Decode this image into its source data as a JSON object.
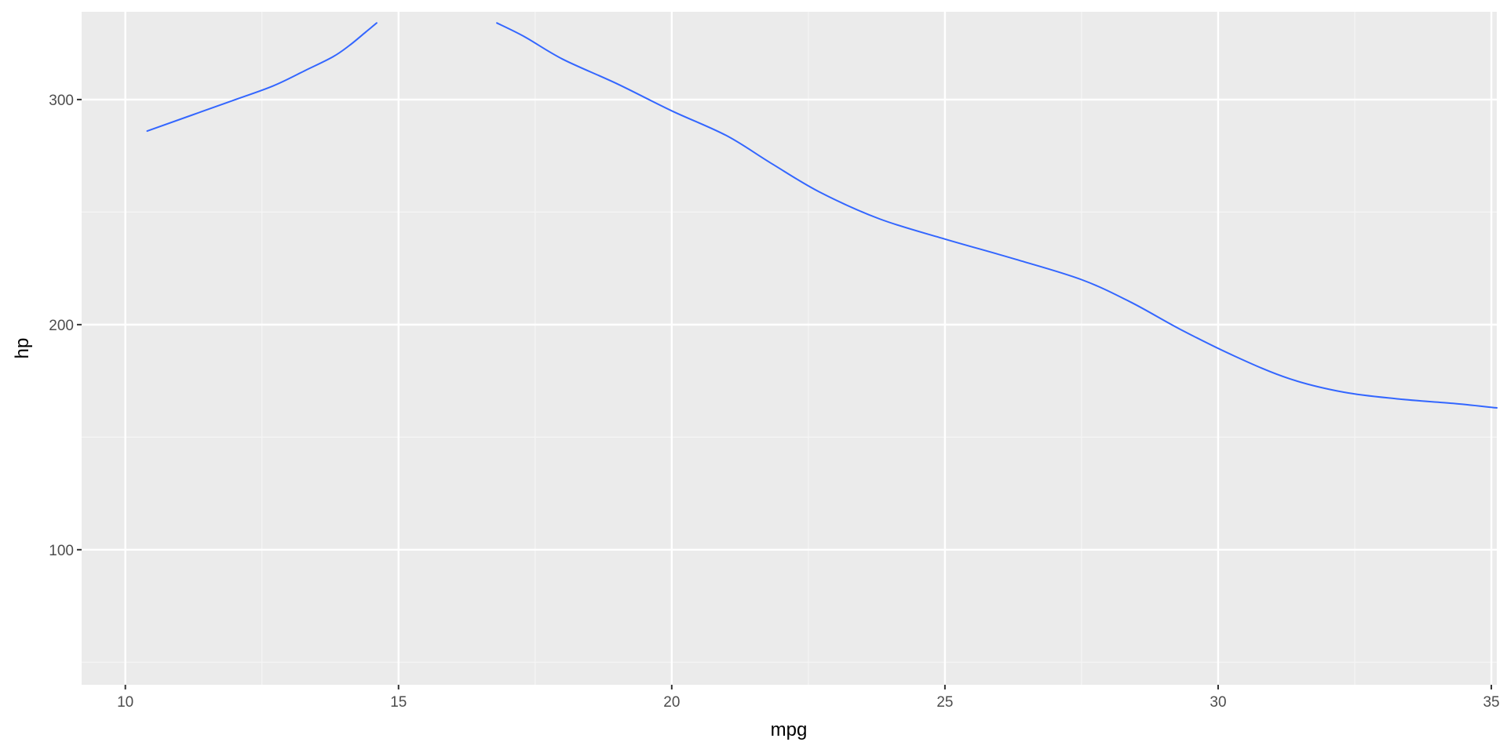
{
  "chart_data": {
    "type": "line",
    "subtype": "density-contour",
    "title": "",
    "xlabel": "mpg",
    "ylabel": "hp",
    "xlim": [
      9.2,
      35.1
    ],
    "ylim": [
      40,
      339
    ],
    "x_ticks": [
      10,
      15,
      20,
      25,
      30,
      35
    ],
    "y_ticks": [
      100,
      200,
      300
    ],
    "grid": true,
    "legend": "none",
    "colors": {
      "contour": "#3366ff",
      "panel_background": "#ebebeb",
      "grid_major": "#ffffff",
      "grid_minor": "#f5f5f5"
    },
    "series": [
      {
        "closed": false,
        "points": [
          [
            10.4,
            286
          ],
          [
            11.9,
            299
          ],
          [
            12.7,
            306
          ],
          [
            13.3,
            313
          ],
          [
            13.8,
            319
          ],
          [
            14.1,
            324
          ],
          [
            14.4,
            330
          ],
          [
            14.6,
            334
          ]
        ]
      },
      {
        "closed": false,
        "points": [
          [
            16.8,
            334
          ],
          [
            17.3,
            328
          ],
          [
            18.0,
            318
          ],
          [
            19.0,
            307
          ],
          [
            20.0,
            295
          ],
          [
            21.0,
            284
          ],
          [
            21.8,
            272
          ],
          [
            22.7,
            259
          ],
          [
            23.8,
            247
          ],
          [
            25.0,
            238
          ],
          [
            26.3,
            229
          ],
          [
            27.5,
            220
          ],
          [
            28.4,
            210
          ],
          [
            29.3,
            198
          ],
          [
            30.3,
            186
          ],
          [
            31.3,
            176
          ],
          [
            32.3,
            170
          ],
          [
            33.3,
            167
          ],
          [
            34.3,
            165
          ],
          [
            35.1,
            163
          ]
        ]
      }
    ]
  }
}
